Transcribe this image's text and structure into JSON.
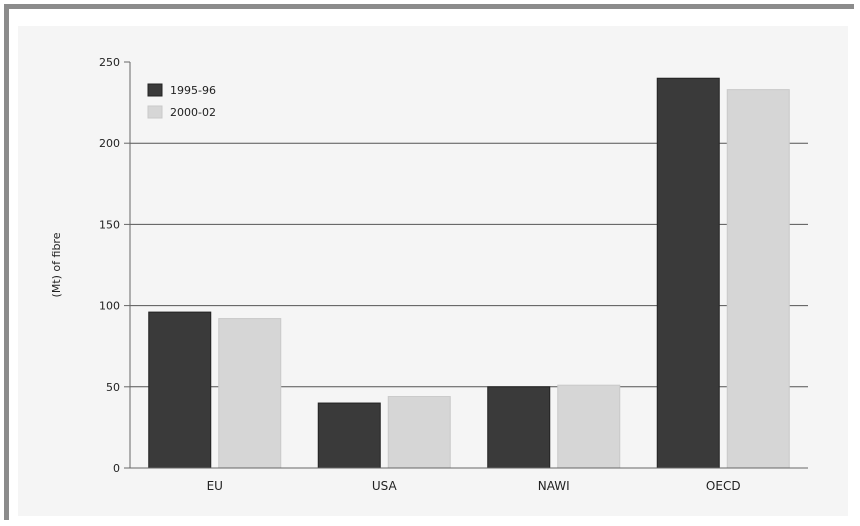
{
  "chart_data": {
    "type": "bar",
    "title": "",
    "xlabel": "",
    "ylabel": "(Mt) of fibre",
    "ylim": [
      0,
      250
    ],
    "yticks": [
      0,
      50,
      100,
      150,
      200,
      250
    ],
    "ytick_labels": [
      "0",
      "50",
      "100",
      "150",
      "200",
      "250"
    ],
    "categories": [
      "EU",
      "USA",
      "NAWI",
      "OECD"
    ],
    "series": [
      {
        "name": "1995-96",
        "color": "#3a3a3a",
        "values": [
          96,
          40,
          50,
          240
        ]
      },
      {
        "name": "2000-02",
        "color": "#d6d6d6",
        "values": [
          92,
          44,
          51,
          233
        ]
      }
    ],
    "grid": "horizontal",
    "legend": "top-left"
  }
}
